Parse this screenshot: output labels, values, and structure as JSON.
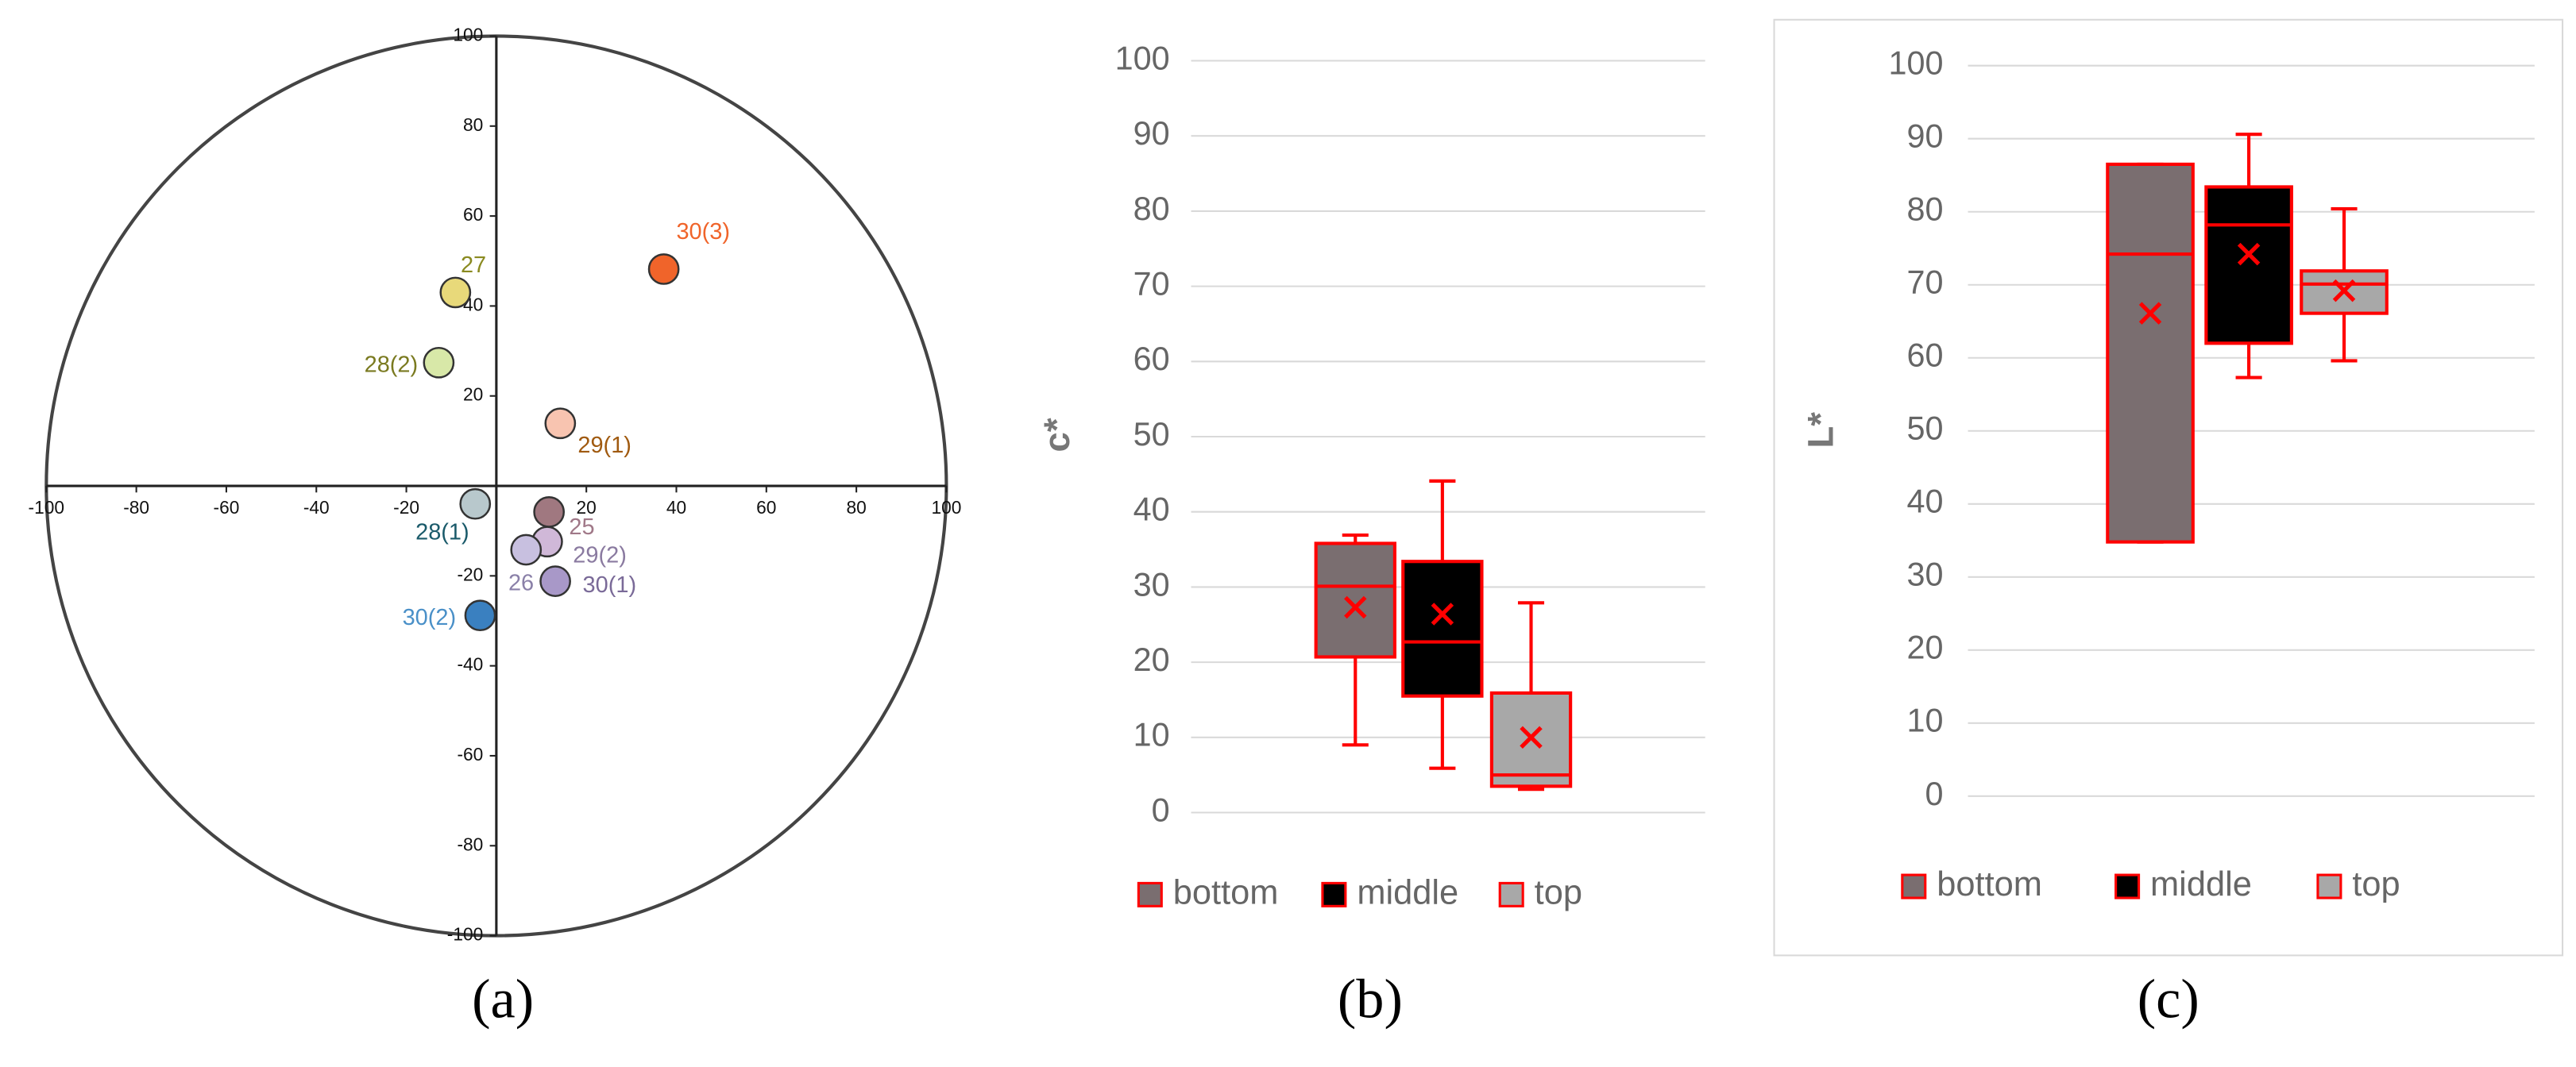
{
  "chart_data": [
    {
      "type": "scatter",
      "caption": "(a)",
      "xlim": [
        -100,
        100
      ],
      "ylim": [
        -100,
        100
      ],
      "xticks": [
        -100,
        -80,
        -60,
        -40,
        -20,
        20,
        40,
        60,
        80,
        100
      ],
      "yticks": [
        -100,
        -80,
        -60,
        -40,
        -20,
        20,
        40,
        60,
        80,
        100
      ],
      "points": [
        {
          "label": "30(3)",
          "x": 37.2,
          "y": 48.2,
          "color": "#f0642a",
          "label_color": "#f0642a"
        },
        {
          "label": "27",
          "x": -9.1,
          "y": 43,
          "color": "#e8d97a",
          "label_color": "#8a8a20"
        },
        {
          "label": "28(2)",
          "x": -12.8,
          "y": 27.4,
          "color": "#d8e8a8",
          "label_color": "#7a7a20"
        },
        {
          "label": "29(1)",
          "x": 14.2,
          "y": 13.9,
          "color": "#f8c4b0",
          "label_color": "#a05a10"
        },
        {
          "label": "28(1)",
          "x": -4.7,
          "y": -4,
          "color": "#b8c8cc",
          "label_color": "#1a5a6a"
        },
        {
          "label": "25",
          "x": 11.7,
          "y": -5.8,
          "color": "#a07880",
          "label_color": "#a07888"
        },
        {
          "label": "29(2)",
          "x": 11.3,
          "y": -12.4,
          "color": "#d0b8d8",
          "label_color": "#8a7aa0"
        },
        {
          "label": "26",
          "x": 6.6,
          "y": -14.2,
          "color": "#c8c0e0",
          "label_color": "#8a80a8"
        },
        {
          "label": "30(1)",
          "x": 13.1,
          "y": -21.2,
          "color": "#a898c8",
          "label_color": "#7a6a98"
        },
        {
          "label": "30(2)",
          "x": -3.6,
          "y": -28.8,
          "color": "#3a80c0",
          "label_color": "#4a90c8"
        }
      ]
    },
    {
      "type": "box",
      "caption": "(b)",
      "ylabel": "c*",
      "ylim": [
        0,
        100
      ],
      "yticks": [
        0,
        10,
        20,
        30,
        40,
        50,
        60,
        70,
        80,
        90,
        100
      ],
      "grid": true,
      "series": [
        {
          "name": "bottom",
          "color": "#7a6e70",
          "min": 9,
          "q1": 20.7,
          "median": 30.1,
          "q3": 35.8,
          "max": 36.9,
          "mean": 27.3
        },
        {
          "name": "middle",
          "color": "#000000",
          "min": 5.9,
          "q1": 15.5,
          "median": 22.7,
          "q3": 33.4,
          "max": 44.1,
          "mean": 26.4
        },
        {
          "name": "top",
          "color": "#a8a8a8",
          "min": 3.1,
          "q1": 3.5,
          "median": 5,
          "q3": 15.9,
          "max": 27.9,
          "mean": 10
        }
      ]
    },
    {
      "type": "box",
      "caption": "(c)",
      "ylabel": "L*",
      "ylim": [
        0,
        100
      ],
      "yticks": [
        0,
        10,
        20,
        30,
        40,
        50,
        60,
        70,
        80,
        90,
        100
      ],
      "grid": true,
      "series": [
        {
          "name": "bottom",
          "color": "#7a6e70",
          "min": 34.8,
          "q1": 34.8,
          "median": 74.2,
          "q3": 86.5,
          "max": 86.5,
          "mean": 66.1
        },
        {
          "name": "middle",
          "color": "#000000",
          "min": 57.3,
          "q1": 62,
          "median": 78.2,
          "q3": 83.4,
          "max": 90.6,
          "mean": 74.2
        },
        {
          "name": "top",
          "color": "#a8a8a8",
          "min": 59.6,
          "q1": 66.1,
          "median": 70.1,
          "q3": 71.9,
          "max": 80.4,
          "mean": 69.2
        }
      ]
    }
  ]
}
